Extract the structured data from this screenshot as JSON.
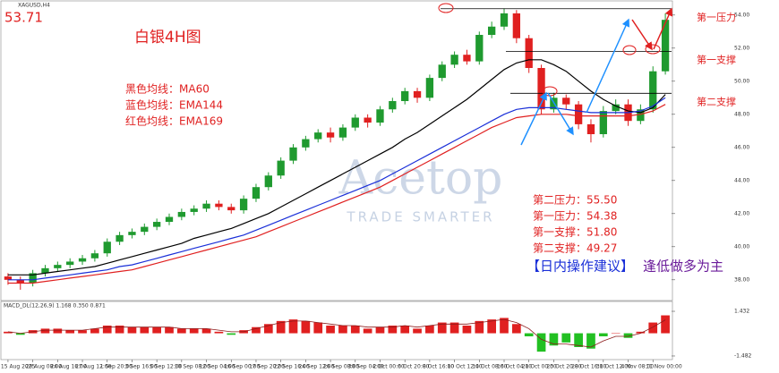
{
  "chart_data": {
    "type": "candlestick",
    "symbol": "XAGUSD,H4",
    "price_label": "53.71",
    "title": "白银4H图",
    "legend_notes": [
      "黑色均线：MA60",
      "蓝色均线：EMA144",
      "红色均线：EMA169"
    ],
    "level_notes": [
      "第二压力：55.50",
      "第一压力：54.38",
      "第一支撑：51.80",
      "第二支撑：49.27"
    ],
    "advice": [
      "【日内操作建议】",
      "逢低做多为主"
    ],
    "watermark": [
      "Acetop",
      "TRADE SMARTER"
    ],
    "up_color": "#1f9a2f",
    "down_color": "#e02020",
    "categories": [
      "15 Aug 2025",
      null,
      "20 Aug 08:00",
      null,
      "24 Aug 16:00",
      null,
      "27 Aug 12:00",
      null,
      "1 Sep 20:00",
      null,
      "3 Sep 16:00",
      null,
      "5 Sep 12:00",
      null,
      "10 Sep 08:00",
      null,
      "12 Sep 04:00",
      null,
      "16 Sep 00:00",
      null,
      "17 Sep 20:00",
      null,
      "22 Sep 16:00",
      null,
      "24 Sep 12:00",
      null,
      "26 Sep 08:00",
      null,
      "30 Sep 04:00",
      null,
      "2 Oct 00:00",
      null,
      "6 Oct 20:00",
      null,
      "8 Oct 16:00",
      null,
      "10 Oct 12:00",
      null,
      "14 Oct 08:00",
      null,
      "16 Oct 04:00",
      null,
      "21 Oct 00:00",
      null,
      "23 Oct 20:00",
      null,
      "28 Oct 16:00",
      null,
      "31 Oct 12:00",
      null,
      "4 Nov 08:00",
      null,
      "11 Nov 00:00",
      null
    ],
    "open": [
      38.2,
      38.0,
      37.8,
      38.4,
      38.7,
      38.9,
      39.1,
      39.3,
      39.6,
      40.3,
      40.7,
      40.9,
      41.2,
      41.5,
      41.8,
      42.1,
      42.3,
      42.6,
      42.4,
      42.2,
      42.9,
      43.6,
      44.3,
      45.2,
      46.0,
      46.5,
      46.9,
      46.6,
      47.2,
      47.8,
      47.5,
      48.3,
      48.8,
      49.4,
      49.0,
      50.2,
      51.0,
      51.6,
      51.2,
      52.8,
      53.3,
      54.1,
      52.6,
      50.8,
      48.3,
      49.0,
      48.6,
      47.4,
      46.8,
      48.2,
      48.6,
      47.6,
      48.3,
      50.6
    ],
    "high": [
      38.4,
      38.2,
      38.6,
      38.9,
      39.1,
      39.3,
      39.5,
      39.8,
      40.5,
      40.9,
      41.1,
      41.4,
      41.7,
      42.0,
      42.3,
      42.5,
      42.8,
      42.8,
      42.6,
      43.1,
      43.8,
      44.5,
      45.4,
      46.2,
      46.7,
      47.1,
      47.2,
      47.4,
      48.0,
      48.0,
      48.5,
      49.0,
      49.6,
      49.6,
      50.4,
      51.2,
      51.8,
      51.9,
      53.0,
      53.6,
      54.4,
      54.3,
      52.8,
      51.0,
      49.3,
      49.2,
      48.8,
      47.7,
      48.5,
      48.9,
      48.9,
      48.6,
      50.9,
      54.1
    ],
    "low": [
      37.7,
      37.4,
      37.6,
      38.2,
      38.5,
      38.7,
      38.9,
      39.1,
      39.4,
      40.1,
      40.5,
      40.7,
      41.0,
      41.3,
      41.6,
      41.9,
      42.1,
      42.2,
      42.0,
      42.0,
      42.7,
      43.4,
      44.1,
      45.0,
      45.8,
      46.3,
      46.3,
      46.4,
      47.0,
      47.2,
      47.3,
      48.1,
      48.6,
      48.7,
      48.8,
      50.0,
      50.8,
      51.0,
      51.0,
      52.6,
      53.1,
      52.3,
      50.5,
      48.0,
      48.1,
      48.3,
      47.1,
      46.3,
      46.6,
      48.0,
      47.3,
      47.4,
      48.1,
      50.4
    ],
    "close": [
      38.0,
      37.8,
      38.4,
      38.7,
      38.9,
      39.1,
      39.3,
      39.6,
      40.3,
      40.7,
      40.9,
      41.2,
      41.5,
      41.8,
      42.1,
      42.3,
      42.6,
      42.4,
      42.2,
      42.9,
      43.6,
      44.3,
      45.2,
      46.0,
      46.5,
      46.9,
      46.6,
      47.2,
      47.8,
      47.5,
      48.3,
      48.8,
      49.4,
      49.0,
      50.2,
      51.0,
      51.6,
      51.2,
      52.8,
      53.3,
      54.1,
      52.6,
      50.8,
      48.3,
      49.0,
      48.6,
      47.4,
      46.8,
      48.2,
      48.6,
      47.6,
      48.3,
      50.6,
      53.71
    ],
    "series": [
      {
        "color": "#000000",
        "values": [
          38.3,
          38.3,
          38.3,
          38.4,
          38.5,
          38.6,
          38.7,
          38.8,
          39.0,
          39.2,
          39.4,
          39.6,
          39.8,
          40.0,
          40.2,
          40.5,
          40.7,
          40.9,
          41.1,
          41.4,
          41.7,
          42.0,
          42.4,
          42.8,
          43.2,
          43.6,
          44.0,
          44.4,
          44.8,
          45.2,
          45.6,
          46.0,
          46.5,
          46.9,
          47.4,
          47.9,
          48.4,
          48.9,
          49.5,
          50.1,
          50.7,
          51.1,
          51.3,
          51.3,
          51.0,
          50.6,
          50.0,
          49.4,
          48.9,
          48.5,
          48.2,
          48.1,
          48.4,
          49.2
        ]
      },
      {
        "color": "#1a2fd8",
        "values": [
          38.0,
          38.0,
          38.0,
          38.1,
          38.2,
          38.3,
          38.4,
          38.5,
          38.6,
          38.8,
          38.9,
          39.1,
          39.3,
          39.5,
          39.7,
          39.9,
          40.1,
          40.3,
          40.5,
          40.7,
          41.0,
          41.3,
          41.6,
          41.9,
          42.2,
          42.5,
          42.8,
          43.1,
          43.4,
          43.7,
          44.0,
          44.4,
          44.8,
          45.2,
          45.6,
          46.0,
          46.4,
          46.8,
          47.2,
          47.6,
          48.0,
          48.3,
          48.4,
          48.4,
          48.4,
          48.3,
          48.2,
          48.1,
          48.1,
          48.1,
          48.1,
          48.2,
          48.5,
          49.0
        ]
      },
      {
        "color": "#e02020",
        "values": [
          37.8,
          37.8,
          37.8,
          37.9,
          38.0,
          38.1,
          38.2,
          38.3,
          38.4,
          38.5,
          38.6,
          38.8,
          39.0,
          39.2,
          39.4,
          39.6,
          39.8,
          40.0,
          40.2,
          40.4,
          40.6,
          40.9,
          41.2,
          41.5,
          41.8,
          42.1,
          42.4,
          42.7,
          43.0,
          43.3,
          43.6,
          44.0,
          44.4,
          44.8,
          45.2,
          45.6,
          46.0,
          46.4,
          46.8,
          47.2,
          47.5,
          47.8,
          47.9,
          48.0,
          48.0,
          48.0,
          47.9,
          47.9,
          47.9,
          47.9,
          47.9,
          48.0,
          48.2,
          48.6
        ]
      }
    ],
    "levels": [
      {
        "label": "第一压力",
        "value": 54.38
      },
      {
        "label": "第一支撑",
        "value": 51.8
      },
      {
        "label": "第二支撑",
        "value": 49.27
      }
    ],
    "ylim": [
      36.8,
      54.8
    ],
    "yticks": [
      {
        "value": 38,
        "label": "38.00"
      },
      {
        "value": 40,
        "label": "40.00"
      },
      {
        "value": 42,
        "label": "42.00"
      },
      {
        "value": 44,
        "label": "44.00"
      },
      {
        "value": 46,
        "label": "46.00"
      },
      {
        "value": 48,
        "label": "48.00"
      },
      {
        "value": 50,
        "label": "50.00"
      },
      {
        "value": 52,
        "label": "52.00"
      },
      {
        "value": 54,
        "label": "54.00"
      }
    ],
    "indicator": {
      "title": "MACD_DL(12,26,9) 1.168 0.350 0.871",
      "up_color": "#e02020",
      "down_color": "#22c022",
      "signal_color": "#8b1a1a",
      "values": [
        0.1,
        -0.1,
        0.2,
        0.3,
        0.3,
        0.2,
        0.2,
        0.3,
        0.5,
        0.5,
        0.4,
        0.4,
        0.4,
        0.4,
        0.3,
        0.3,
        0.3,
        0.1,
        -0.1,
        0.2,
        0.4,
        0.6,
        0.8,
        0.9,
        0.8,
        0.7,
        0.5,
        0.5,
        0.5,
        0.3,
        0.4,
        0.5,
        0.5,
        0.3,
        0.5,
        0.7,
        0.7,
        0.5,
        0.8,
        0.9,
        1.0,
        0.6,
        -0.2,
        -1.2,
        -0.8,
        -0.6,
        -0.9,
        -1.0,
        -0.2,
        0.0,
        -0.3,
        0.1,
        0.7,
        1.168
      ],
      "signal": [
        0.1,
        0.0,
        0.1,
        0.2,
        0.2,
        0.2,
        0.2,
        0.3,
        0.4,
        0.4,
        0.4,
        0.4,
        0.4,
        0.4,
        0.3,
        0.3,
        0.3,
        0.2,
        0.1,
        0.1,
        0.3,
        0.5,
        0.7,
        0.8,
        0.8,
        0.7,
        0.6,
        0.5,
        0.5,
        0.4,
        0.4,
        0.4,
        0.5,
        0.4,
        0.5,
        0.6,
        0.6,
        0.6,
        0.7,
        0.8,
        0.9,
        0.7,
        0.3,
        -0.4,
        -0.7,
        -0.7,
        -0.8,
        -0.9,
        -0.5,
        -0.2,
        -0.2,
        0.0,
        0.4,
        0.871
      ],
      "ylim": [
        -1.6,
        1.55
      ],
      "yticks": [
        1.432,
        -1.482
      ]
    }
  }
}
